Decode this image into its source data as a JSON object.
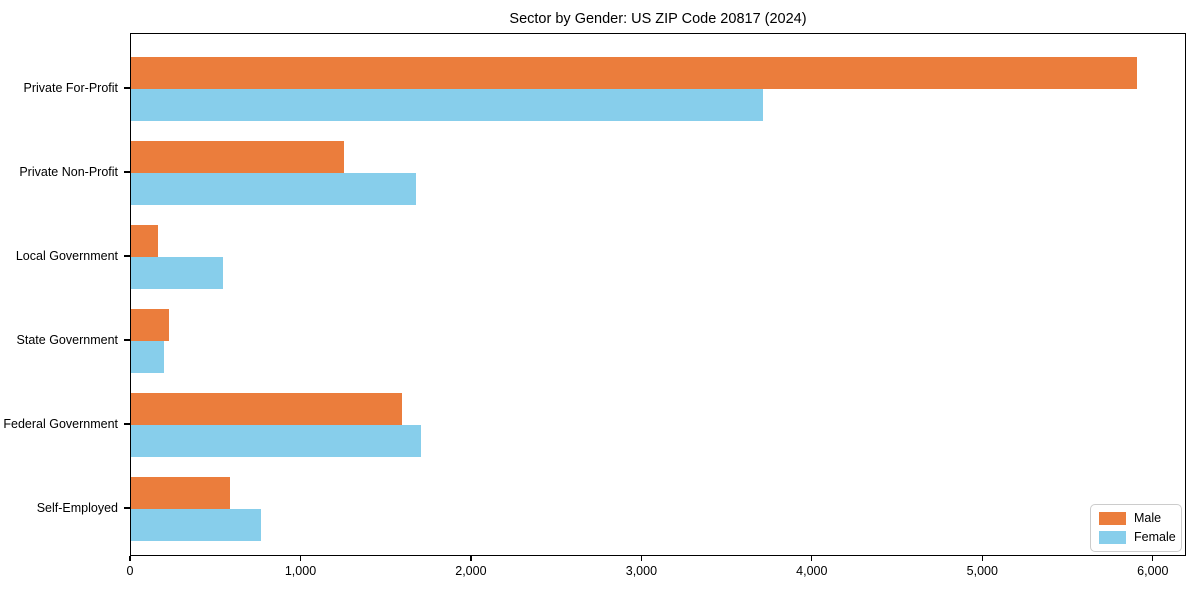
{
  "title": "Sector by Gender: US ZIP Code 20817 (2024)",
  "colors": {
    "male": "#EB7D3C",
    "female": "#87CEEB",
    "axis": "#000000",
    "background": "#FFFFFF",
    "legend_border": "#CCCCCC"
  },
  "chart_data": {
    "type": "bar",
    "orientation": "horizontal",
    "title": "Sector by Gender: US ZIP Code 20817 (2024)",
    "xlabel": "",
    "ylabel": "",
    "categories": [
      "Private For-Profit",
      "Private Non-Profit",
      "Local Government",
      "State Government",
      "Federal Government",
      "Self-Employed"
    ],
    "series": [
      {
        "name": "Male",
        "color": "#EB7D3C",
        "values": [
          5900,
          1250,
          160,
          220,
          1590,
          580
        ]
      },
      {
        "name": "Female",
        "color": "#87CEEB",
        "values": [
          3710,
          1670,
          540,
          195,
          1700,
          760
        ]
      }
    ],
    "xlim": [
      0,
      6195
    ],
    "x_ticks": [
      0,
      1000,
      2000,
      3000,
      4000,
      5000,
      6000
    ],
    "x_tick_labels": [
      "0",
      "1,000",
      "2,000",
      "3,000",
      "4,000",
      "5,000",
      "6,000"
    ],
    "grid": "off",
    "legend": {
      "position": "lower right",
      "entries": [
        "Male",
        "Female"
      ]
    }
  }
}
